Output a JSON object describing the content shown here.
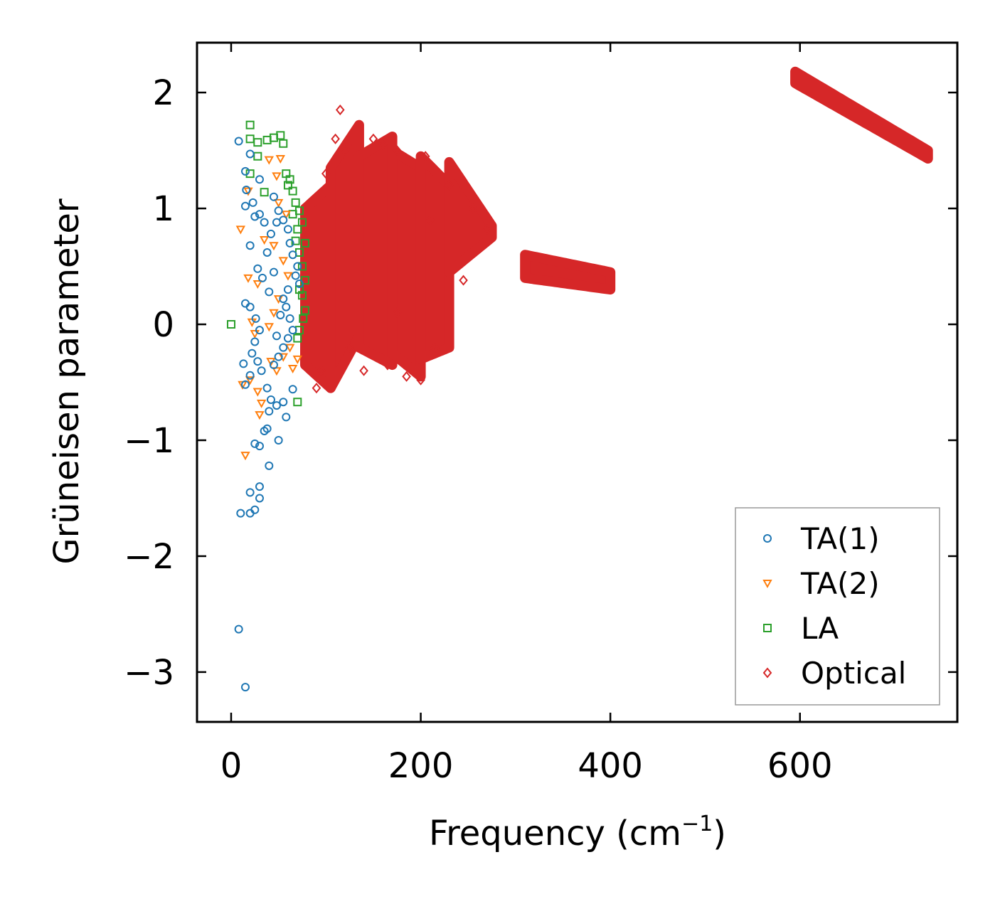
{
  "chart_data": {
    "type": "scatter",
    "title": "",
    "xlabel": "Frequency (cm",
    "xlabel_sup": "−1",
    "xlabel_tail": ")",
    "ylabel": "Grüneisen parameter",
    "xlim": [
      -36,
      766
    ],
    "ylim": [
      -3.43,
      2.43
    ],
    "xticks": [
      0,
      200,
      400,
      600
    ],
    "xtick_labels": [
      "0",
      "200",
      "400",
      "600"
    ],
    "yticks": [
      2,
      1,
      0,
      -1,
      -2,
      -3
    ],
    "ytick_labels": [
      "2",
      "1",
      "0",
      "−1",
      "−2",
      "−3"
    ],
    "legend_position": "lower-right",
    "series": [
      {
        "name": "TA(1)",
        "marker": "circle",
        "color": "#1f77b4",
        "points": [
          [
            8,
            1.58
          ],
          [
            15,
            1.32
          ],
          [
            20,
            1.47
          ],
          [
            16,
            1.16
          ],
          [
            23,
            1.05
          ],
          [
            15,
            1.02
          ],
          [
            25,
            0.93
          ],
          [
            30,
            0.95
          ],
          [
            35,
            0.88
          ],
          [
            20,
            0.68
          ],
          [
            28,
            0.48
          ],
          [
            33,
            0.4
          ],
          [
            15,
            0.18
          ],
          [
            20,
            0.15
          ],
          [
            26,
            0.05
          ],
          [
            30,
            -0.05
          ],
          [
            25,
            -0.15
          ],
          [
            22,
            -0.25
          ],
          [
            28,
            -0.32
          ],
          [
            32,
            -0.4
          ],
          [
            13,
            -0.34
          ],
          [
            20,
            -0.44
          ],
          [
            15,
            -0.52
          ],
          [
            38,
            -0.55
          ],
          [
            42,
            -0.65
          ],
          [
            48,
            -0.7
          ],
          [
            55,
            -0.67
          ],
          [
            58,
            -0.8
          ],
          [
            65,
            -0.56
          ],
          [
            40,
            -0.75
          ],
          [
            35,
            -0.92
          ],
          [
            38,
            -0.9
          ],
          [
            30,
            -1.05
          ],
          [
            25,
            -1.03
          ],
          [
            50,
            -1.0
          ],
          [
            40,
            -1.22
          ],
          [
            30,
            -1.4
          ],
          [
            20,
            -1.45
          ],
          [
            30,
            -1.5
          ],
          [
            10,
            -1.63
          ],
          [
            20,
            -1.63
          ],
          [
            25,
            -1.6
          ],
          [
            8,
            -2.63
          ],
          [
            15,
            -3.13
          ],
          [
            30,
            1.25
          ],
          [
            45,
            1.1
          ],
          [
            50,
            0.98
          ],
          [
            55,
            0.9
          ],
          [
            60,
            0.82
          ],
          [
            62,
            0.7
          ],
          [
            65,
            0.6
          ],
          [
            70,
            0.5
          ],
          [
            68,
            0.42
          ],
          [
            72,
            0.35
          ],
          [
            60,
            0.3
          ],
          [
            55,
            0.22
          ],
          [
            58,
            0.15
          ],
          [
            62,
            0.05
          ],
          [
            65,
            -0.05
          ],
          [
            60,
            -0.12
          ],
          [
            55,
            -0.2
          ],
          [
            50,
            -0.28
          ],
          [
            45,
            -0.35
          ],
          [
            48,
            -0.1
          ],
          [
            52,
            0.08
          ],
          [
            40,
            0.28
          ],
          [
            45,
            0.45
          ],
          [
            38,
            0.62
          ],
          [
            42,
            0.78
          ],
          [
            48,
            0.88
          ]
        ]
      },
      {
        "name": "TA(2)",
        "marker": "triangle-down",
        "color": "#ff7f0e",
        "points": [
          [
            40,
            1.42
          ],
          [
            52,
            1.43
          ],
          [
            48,
            1.28
          ],
          [
            18,
            1.15
          ],
          [
            10,
            0.82
          ],
          [
            35,
            0.73
          ],
          [
            18,
            0.4
          ],
          [
            28,
            0.35
          ],
          [
            22,
            0.02
          ],
          [
            25,
            -0.08
          ],
          [
            40,
            -0.02
          ],
          [
            45,
            0.1
          ],
          [
            12,
            -0.52
          ],
          [
            20,
            -0.48
          ],
          [
            28,
            -0.58
          ],
          [
            32,
            -0.68
          ],
          [
            30,
            -0.78
          ],
          [
            15,
            -1.13
          ],
          [
            42,
            -0.32
          ],
          [
            48,
            -0.4
          ],
          [
            55,
            -0.28
          ],
          [
            62,
            -0.2
          ],
          [
            65,
            -0.38
          ],
          [
            70,
            -0.3
          ],
          [
            50,
            0.22
          ],
          [
            55,
            0.55
          ],
          [
            60,
            0.42
          ],
          [
            45,
            0.68
          ],
          [
            58,
            0.95
          ],
          [
            50,
            1.05
          ]
        ]
      },
      {
        "name": "LA",
        "marker": "square",
        "color": "#2ca02c",
        "points": [
          [
            20,
            1.72
          ],
          [
            20,
            1.6
          ],
          [
            28,
            1.57
          ],
          [
            38,
            1.59
          ],
          [
            45,
            1.61
          ],
          [
            52,
            1.63
          ],
          [
            55,
            1.56
          ],
          [
            28,
            1.45
          ],
          [
            20,
            1.3
          ],
          [
            35,
            1.14
          ],
          [
            58,
            1.3
          ],
          [
            62,
            1.25
          ],
          [
            65,
            1.15
          ],
          [
            68,
            1.05
          ],
          [
            72,
            0.98
          ],
          [
            75,
            0.88
          ],
          [
            70,
            0.82
          ],
          [
            68,
            0.72
          ],
          [
            72,
            0.62
          ],
          [
            75,
            0.5
          ],
          [
            78,
            0.38
          ],
          [
            75,
            0.25
          ],
          [
            78,
            0.12
          ],
          [
            76,
            0.05
          ],
          [
            72,
            -0.05
          ],
          [
            70,
            -0.12
          ],
          [
            0,
            0
          ],
          [
            70,
            -0.67
          ],
          [
            65,
            0.95
          ],
          [
            60,
            1.2
          ],
          [
            72,
            0.3
          ],
          [
            78,
            0.7
          ]
        ]
      },
      {
        "name": "Optical",
        "marker": "diamond",
        "color": "#d62728",
        "points": [
          [
            115,
            1.85
          ],
          [
            140,
            -0.4
          ],
          [
            100,
            1.3
          ],
          [
            110,
            1.6
          ],
          [
            150,
            1.6
          ],
          [
            175,
            1.5
          ],
          [
            205,
            1.45
          ],
          [
            185,
            -0.45
          ],
          [
            200,
            -0.48
          ],
          [
            245,
            0.38
          ],
          [
            90,
            -0.55
          ],
          [
            120,
            1.5
          ],
          [
            160,
            1.55
          ],
          [
            230,
            1.2
          ],
          [
            255,
            1.0
          ],
          [
            270,
            0.82
          ],
          [
            215,
            -0.2
          ],
          [
            165,
            -0.35
          ],
          [
            125,
            -0.2
          ],
          [
            95,
            -0.4
          ],
          [
            175,
            0.1
          ],
          [
            210,
            0.9
          ]
        ],
        "clusters": [
          {
            "kind": "band",
            "x_start": 78,
            "x_end": 105,
            "y_top": [
              1.0,
              1.2
            ],
            "y_bottom": [
              -0.35,
              -0.55
            ]
          },
          {
            "kind": "band",
            "x_start": 105,
            "x_end": 135,
            "y_top": [
              1.35,
              1.72
            ],
            "y_bottom": [
              -0.55,
              -0.1
            ]
          },
          {
            "kind": "band",
            "x_start": 135,
            "x_end": 170,
            "y_top": [
              1.45,
              1.62
            ],
            "y_bottom": [
              -0.2,
              -0.35
            ]
          },
          {
            "kind": "band",
            "x_start": 170,
            "x_end": 200,
            "y_top": [
              1.5,
              1.35
            ],
            "y_bottom": [
              -0.25,
              -0.45
            ]
          },
          {
            "kind": "band",
            "x_start": 200,
            "x_end": 230,
            "y_top": [
              1.45,
              1.2
            ],
            "y_bottom": [
              -0.3,
              -0.2
            ]
          },
          {
            "kind": "band",
            "x_start": 230,
            "x_end": 275,
            "y_top": [
              1.4,
              0.85
            ],
            "y_bottom": [
              0.45,
              0.75
            ]
          },
          {
            "kind": "band",
            "x_start": 310,
            "x_end": 400,
            "y_top": [
              0.6,
              0.45
            ],
            "y_bottom": [
              0.4,
              0.3
            ]
          },
          {
            "kind": "band",
            "x_start": 595,
            "x_end": 735,
            "y_top": [
              2.18,
              1.5
            ],
            "y_bottom": [
              2.08,
              1.43
            ]
          }
        ]
      }
    ]
  }
}
